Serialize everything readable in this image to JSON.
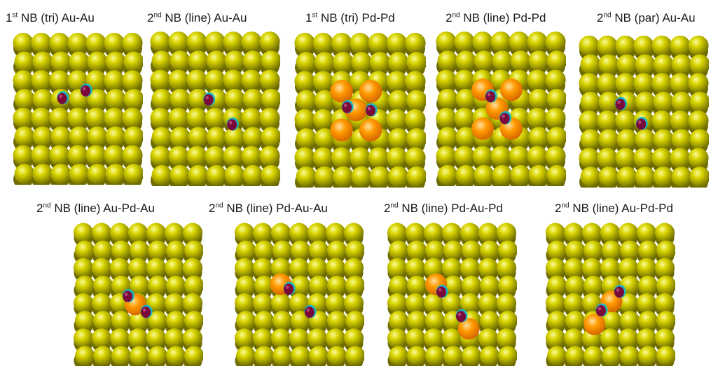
{
  "colors": {
    "au": "#d8d400",
    "au_highlight": "#fbfb9a",
    "au_shadow": "#6e6c00",
    "pd": "#ff9a00",
    "pd_highlight": "#ffe0a0",
    "pd_shadow": "#d06000",
    "adsorbate": "#7a0a3a",
    "adsorbate_ring": "#18b8c8"
  },
  "panels": [
    {
      "prefix": "1",
      "suffix": "st",
      "text": " NB (tri) Au-Au",
      "grid": [
        7,
        8
      ],
      "pd_atoms": [],
      "adsorbates": [
        [
          0.38,
          0.43
        ],
        [
          0.56,
          0.38
        ]
      ]
    },
    {
      "prefix": "2",
      "suffix": "nd",
      "text": " NB (line) Au-Au",
      "grid": [
        7,
        8
      ],
      "pd_atoms": [],
      "adsorbates": [
        [
          0.45,
          0.44
        ],
        [
          0.63,
          0.6
        ]
      ]
    },
    {
      "prefix": "1",
      "suffix": "st",
      "text": " NB (tri) Pd-Pd",
      "grid": [
        7,
        8
      ],
      "pd_atoms": [
        [
          0.36,
          0.38
        ],
        [
          0.58,
          0.38
        ],
        [
          0.47,
          0.5
        ],
        [
          0.36,
          0.63
        ],
        [
          0.58,
          0.63
        ]
      ],
      "adsorbates": [
        [
          0.4,
          0.48
        ],
        [
          0.58,
          0.5
        ]
      ]
    },
    {
      "prefix": "2",
      "suffix": "nd",
      "text": " NB (line) Pd-Pd",
      "grid": [
        7,
        8
      ],
      "pd_atoms": [
        [
          0.36,
          0.38
        ],
        [
          0.58,
          0.38
        ],
        [
          0.47,
          0.5
        ],
        [
          0.36,
          0.63
        ],
        [
          0.58,
          0.63
        ]
      ],
      "adsorbates": [
        [
          0.42,
          0.42
        ],
        [
          0.53,
          0.56
        ]
      ]
    },
    {
      "prefix": "2",
      "suffix": "nd",
      "text": " NB (par) Au-Au",
      "grid": [
        7,
        8
      ],
      "pd_atoms": [],
      "adsorbates": [
        [
          0.32,
          0.45
        ],
        [
          0.48,
          0.58
        ]
      ]
    },
    {
      "prefix": "2",
      "suffix": "nd",
      "text": " NB (line) Au-Pd-Au",
      "grid": [
        7,
        8
      ],
      "pd_atoms": [
        [
          0.48,
          0.57
        ]
      ],
      "adsorbates": [
        [
          0.42,
          0.51
        ],
        [
          0.56,
          0.62
        ]
      ]
    },
    {
      "prefix": "2",
      "suffix": "nd",
      "text": " NB (line) Pd-Au-Au",
      "grid": [
        7,
        8
      ],
      "pd_atoms": [
        [
          0.36,
          0.43
        ]
      ],
      "adsorbates": [
        [
          0.42,
          0.46
        ],
        [
          0.58,
          0.62
        ]
      ]
    },
    {
      "prefix": "2",
      "suffix": "nd",
      "text": " NB (line) Pd-Au-Pd",
      "grid": [
        7,
        8
      ],
      "pd_atoms": [
        [
          0.38,
          0.43
        ],
        [
          0.63,
          0.74
        ]
      ],
      "adsorbates": [
        [
          0.42,
          0.48
        ],
        [
          0.57,
          0.65
        ]
      ]
    },
    {
      "prefix": "2",
      "suffix": "nd",
      "text": " NB (line) Au-Pd-Pd",
      "grid": [
        7,
        8
      ],
      "pd_atoms": [
        [
          0.51,
          0.55
        ],
        [
          0.38,
          0.71
        ]
      ],
      "adsorbates": [
        [
          0.57,
          0.48
        ],
        [
          0.43,
          0.61
        ]
      ]
    }
  ]
}
